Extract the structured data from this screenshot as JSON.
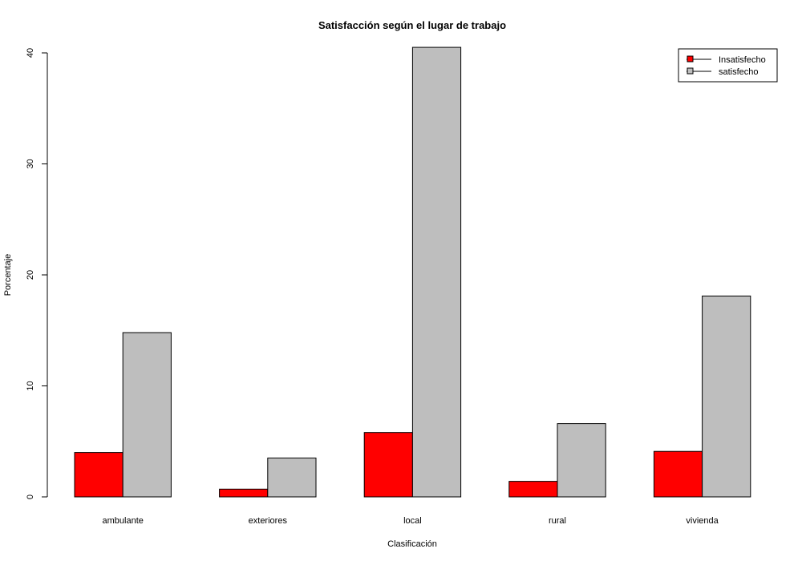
{
  "chart_data": {
    "type": "bar",
    "title": "Satisfacción según el lugar de trabajo",
    "xlabel": "Clasificación",
    "ylabel": "Porcentaje",
    "categories": [
      "ambulante",
      "exteriores",
      "local",
      "rural",
      "vivienda"
    ],
    "series": [
      {
        "name": "Insatisfecho",
        "color": "#ff0000",
        "values": [
          4.0,
          0.7,
          5.8,
          1.4,
          4.1
        ]
      },
      {
        "name": "satisfecho",
        "color": "#bebebe",
        "values": [
          14.8,
          3.5,
          40.5,
          6.6,
          18.1
        ]
      }
    ],
    "ylim": [
      0,
      40
    ],
    "yticks": [
      0,
      10,
      20,
      30,
      40
    ],
    "legend_position": "top-right",
    "grid": false
  }
}
